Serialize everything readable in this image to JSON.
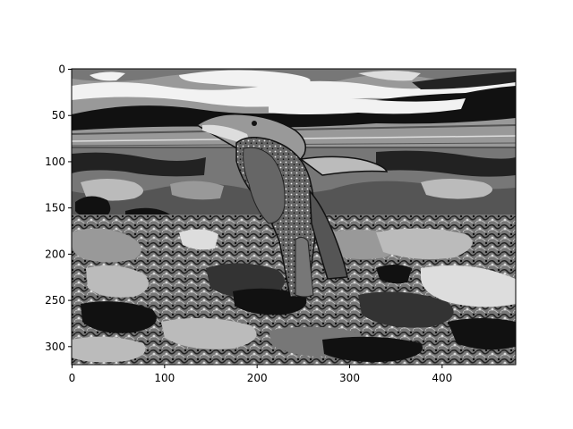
{
  "chart_data": {
    "type": "heatmap",
    "title": "",
    "xlabel": "",
    "ylabel": "",
    "colormap": "gray",
    "image_width": 480,
    "image_height": 320,
    "xlim": [
      0,
      480
    ],
    "ylim": [
      320,
      0
    ],
    "y_inverted": true,
    "grid": false,
    "legend": "none",
    "x_ticks": [
      0,
      100,
      200,
      300,
      400
    ],
    "x_tick_labels": [
      "0",
      "100",
      "200",
      "300",
      "400"
    ],
    "y_ticks": [
      0,
      50,
      100,
      150,
      200,
      250,
      300
    ],
    "y_tick_labels": [
      "0",
      "50",
      "100",
      "150",
      "200",
      "250",
      "300"
    ],
    "subject": "penguin on rocks, posterized grayscale image",
    "gray_levels": [
      "#111111",
      "#333333",
      "#555555",
      "#777777",
      "#999999",
      "#bbbbbb",
      "#dddddd",
      "#f2f2f2"
    ]
  }
}
